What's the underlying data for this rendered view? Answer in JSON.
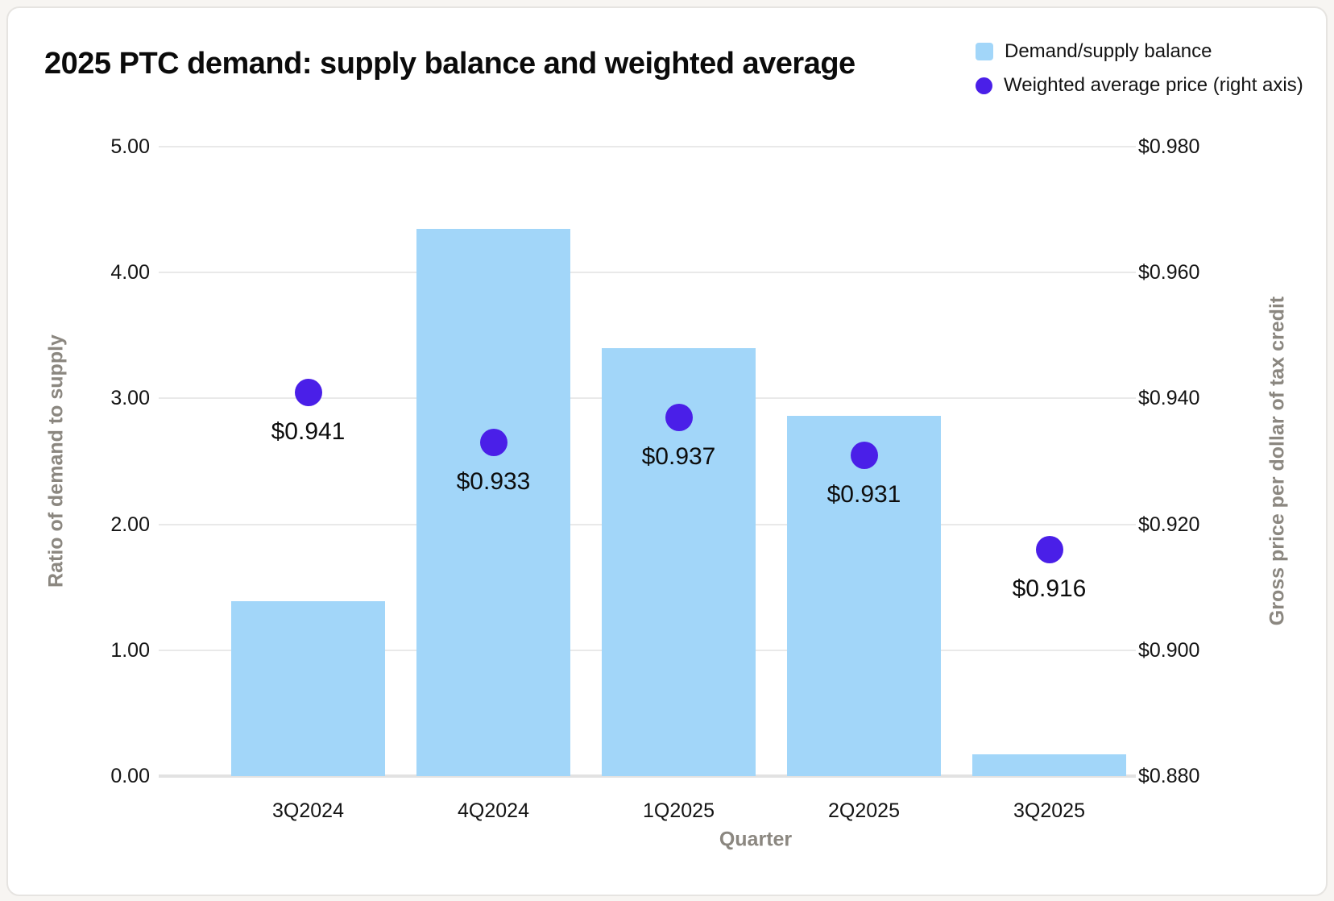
{
  "chart_data": {
    "type": "combo",
    "title": "2025 PTC demand: supply balance and weighted average",
    "categories": [
      "3Q2024",
      "4Q2024",
      "1Q2025",
      "2Q2025",
      "3Q2025"
    ],
    "series": [
      {
        "name": "Demand/supply balance",
        "type": "bar",
        "axis": "left",
        "color": "#a2d6f9",
        "values": [
          1.39,
          4.35,
          3.4,
          2.86,
          0.17
        ]
      },
      {
        "name": "Weighted average price (right axis)",
        "type": "scatter",
        "axis": "right",
        "color": "#4a1fe8",
        "values": [
          0.941,
          0.933,
          0.937,
          0.931,
          0.916
        ],
        "labels": [
          "$0.941",
          "$0.933",
          "$0.937",
          "$0.931",
          "$0.916"
        ]
      }
    ],
    "xlabel": "Quarter",
    "left_axis": {
      "label": "Ratio of demand to supply",
      "min": 0,
      "max": 5,
      "ticks": [
        "0.00",
        "1.00",
        "2.00",
        "3.00",
        "4.00",
        "5.00"
      ]
    },
    "right_axis": {
      "label": "Gross price per dollar of tax credit",
      "min": 0.88,
      "max": 0.98,
      "ticks": [
        "$0.880",
        "$0.900",
        "$0.920",
        "$0.940",
        "$0.960",
        "$0.980"
      ]
    },
    "grid": true,
    "legend_position": "top-right"
  }
}
